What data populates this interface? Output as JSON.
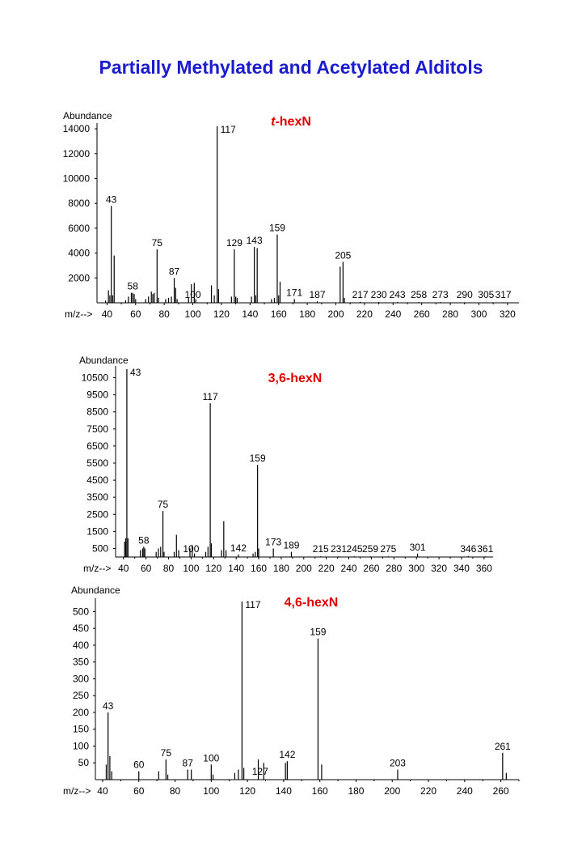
{
  "title": "Partially Methylated and Acetylated Alditols",
  "colors": {
    "title": "#1c1ccf",
    "spectrum_title": "#e00000",
    "bars": "#000000"
  },
  "chart_data": [
    {
      "type": "bar",
      "title_prefix": "t",
      "title_suffix": "-hexN",
      "ylabel": "Abundance",
      "xlabel": "m/z-->",
      "xlim": [
        33,
        328
      ],
      "ylim": [
        0,
        14200
      ],
      "xticks": [
        40,
        60,
        80,
        100,
        120,
        140,
        160,
        180,
        200,
        220,
        240,
        260,
        280,
        300,
        320
      ],
      "yticks": [
        2000,
        4000,
        6000,
        8000,
        10000,
        12000,
        14000
      ],
      "peaks": [
        [
          39,
          180
        ],
        [
          41,
          1000
        ],
        [
          42,
          600
        ],
        [
          43,
          7800
        ],
        [
          44,
          600
        ],
        [
          45,
          3800
        ],
        [
          53,
          200
        ],
        [
          55,
          500
        ],
        [
          57,
          800
        ],
        [
          58,
          800
        ],
        [
          59,
          700
        ],
        [
          60,
          300
        ],
        [
          67,
          300
        ],
        [
          69,
          500
        ],
        [
          71,
          900
        ],
        [
          72,
          700
        ],
        [
          73,
          800
        ],
        [
          75,
          4300
        ],
        [
          76,
          400
        ],
        [
          81,
          300
        ],
        [
          83,
          400
        ],
        [
          85,
          500
        ],
        [
          87,
          2000
        ],
        [
          88,
          1200
        ],
        [
          89,
          300
        ],
        [
          97,
          400
        ],
        [
          99,
          1500
        ],
        [
          101,
          1600
        ],
        [
          102,
          300
        ],
        [
          113,
          1400
        ],
        [
          115,
          600
        ],
        [
          117,
          14200
        ],
        [
          118,
          1100
        ],
        [
          127,
          500
        ],
        [
          129,
          4300
        ],
        [
          130,
          500
        ],
        [
          131,
          400
        ],
        [
          141,
          500
        ],
        [
          143,
          4500
        ],
        [
          144,
          600
        ],
        [
          145,
          4400
        ],
        [
          155,
          300
        ],
        [
          157,
          400
        ],
        [
          159,
          5500
        ],
        [
          160,
          600
        ],
        [
          161,
          1700
        ],
        [
          171,
          300
        ],
        [
          187,
          120
        ],
        [
          203,
          2900
        ],
        [
          205,
          3300
        ],
        [
          206,
          400
        ],
        [
          217,
          80
        ],
        [
          230,
          60
        ],
        [
          243,
          60
        ],
        [
          258,
          60
        ],
        [
          273,
          60
        ],
        [
          290,
          40
        ],
        [
          305,
          40
        ],
        [
          317,
          40
        ]
      ],
      "labels": [
        {
          "mz": 43,
          "text": "43"
        },
        {
          "mz": 58,
          "text": "58"
        },
        {
          "mz": 75,
          "text": "75"
        },
        {
          "mz": 87,
          "text": "87"
        },
        {
          "mz": 100,
          "text": "100"
        },
        {
          "mz": 117,
          "text": "117"
        },
        {
          "mz": 129,
          "text": "129"
        },
        {
          "mz": 143,
          "text": "143"
        },
        {
          "mz": 159,
          "text": "159"
        },
        {
          "mz": 171,
          "text": "171"
        },
        {
          "mz": 187,
          "text": "187"
        },
        {
          "mz": 205,
          "text": "205"
        },
        {
          "mz": 217,
          "text": "217"
        },
        {
          "mz": 230,
          "text": "230"
        },
        {
          "mz": 243,
          "text": "243"
        },
        {
          "mz": 258,
          "text": "258"
        },
        {
          "mz": 273,
          "text": "273"
        },
        {
          "mz": 290,
          "text": "290"
        },
        {
          "mz": 305,
          "text": "305"
        },
        {
          "mz": 317,
          "text": "317"
        }
      ]
    },
    {
      "type": "bar",
      "title_prefix": "",
      "title_suffix": "3,6-hexN",
      "ylabel": "Abundance",
      "xlabel": "m/z-->",
      "xlim": [
        33,
        368
      ],
      "ylim": [
        0,
        11000
      ],
      "xticks": [
        40,
        60,
        80,
        100,
        120,
        140,
        160,
        180,
        200,
        220,
        240,
        260,
        280,
        300,
        320,
        340,
        360
      ],
      "yticks": [
        500,
        1500,
        2500,
        3500,
        4500,
        5500,
        6500,
        7500,
        8500,
        9500,
        10500
      ],
      "peaks": [
        [
          41,
          900
        ],
        [
          42,
          1100
        ],
        [
          43,
          11000
        ],
        [
          44,
          1100
        ],
        [
          55,
          400
        ],
        [
          57,
          500
        ],
        [
          58,
          600
        ],
        [
          59,
          500
        ],
        [
          69,
          300
        ],
        [
          71,
          500
        ],
        [
          73,
          600
        ],
        [
          75,
          2700
        ],
        [
          76,
          300
        ],
        [
          85,
          300
        ],
        [
          87,
          1300
        ],
        [
          89,
          400
        ],
        [
          99,
          500
        ],
        [
          101,
          700
        ],
        [
          103,
          200
        ],
        [
          113,
          300
        ],
        [
          115,
          600
        ],
        [
          117,
          9000
        ],
        [
          118,
          800
        ],
        [
          127,
          400
        ],
        [
          129,
          2100
        ],
        [
          131,
          400
        ],
        [
          142,
          150
        ],
        [
          155,
          200
        ],
        [
          157,
          300
        ],
        [
          159,
          5400
        ],
        [
          160,
          500
        ],
        [
          173,
          500
        ],
        [
          189,
          300
        ],
        [
          215,
          40
        ],
        [
          231,
          40
        ],
        [
          245,
          40
        ],
        [
          259,
          40
        ],
        [
          275,
          40
        ],
        [
          301,
          200
        ],
        [
          346,
          60
        ],
        [
          361,
          40
        ]
      ],
      "labels": [
        {
          "mz": 43,
          "text": "43"
        },
        {
          "mz": 58,
          "text": "58"
        },
        {
          "mz": 75,
          "text": "75"
        },
        {
          "mz": 100,
          "text": "100"
        },
        {
          "mz": 117,
          "text": "117"
        },
        {
          "mz": 142,
          "text": "142"
        },
        {
          "mz": 159,
          "text": "159"
        },
        {
          "mz": 173,
          "text": "173"
        },
        {
          "mz": 189,
          "text": "189"
        },
        {
          "mz": 215,
          "text": "215"
        },
        {
          "mz": 231,
          "text": "231"
        },
        {
          "mz": 245,
          "text": "245"
        },
        {
          "mz": 259,
          "text": "259"
        },
        {
          "mz": 275,
          "text": "275"
        },
        {
          "mz": 301,
          "text": "301"
        },
        {
          "mz": 346,
          "text": "346"
        },
        {
          "mz": 361,
          "text": "361"
        }
      ]
    },
    {
      "type": "bar",
      "title_prefix": "",
      "title_suffix": "4,6-hexN",
      "ylabel": "Abundance",
      "xlabel": "m/z-->",
      "xlim": [
        36,
        270
      ],
      "ylim": [
        0,
        530
      ],
      "xticks": [
        40,
        60,
        80,
        100,
        120,
        140,
        160,
        180,
        200,
        220,
        240,
        260
      ],
      "yticks": [
        50,
        100,
        150,
        200,
        250,
        300,
        350,
        400,
        450,
        500
      ],
      "peaks": [
        [
          42,
          45
        ],
        [
          43,
          200
        ],
        [
          44,
          70
        ],
        [
          45,
          25
        ],
        [
          60,
          25
        ],
        [
          71,
          25
        ],
        [
          75,
          60
        ],
        [
          76,
          15
        ],
        [
          87,
          30
        ],
        [
          89,
          30
        ],
        [
          100,
          45
        ],
        [
          101,
          15
        ],
        [
          113,
          20
        ],
        [
          115,
          30
        ],
        [
          117,
          530
        ],
        [
          118,
          35
        ],
        [
          126,
          60
        ],
        [
          129,
          50
        ],
        [
          141,
          50
        ],
        [
          142,
          55
        ],
        [
          159,
          420
        ],
        [
          161,
          45
        ],
        [
          203,
          30
        ],
        [
          261,
          80
        ],
        [
          263,
          20
        ]
      ],
      "labels": [
        {
          "mz": 43,
          "text": "43"
        },
        {
          "mz": 60,
          "text": "60"
        },
        {
          "mz": 75,
          "text": "75"
        },
        {
          "mz": 87,
          "text": "87"
        },
        {
          "mz": 100,
          "text": "100"
        },
        {
          "mz": 117,
          "text": "117"
        },
        {
          "mz": 127,
          "text": "127"
        },
        {
          "mz": 142,
          "text": "142"
        },
        {
          "mz": 159,
          "text": "159"
        },
        {
          "mz": 203,
          "text": "203"
        },
        {
          "mz": 261,
          "text": "261"
        }
      ]
    }
  ]
}
